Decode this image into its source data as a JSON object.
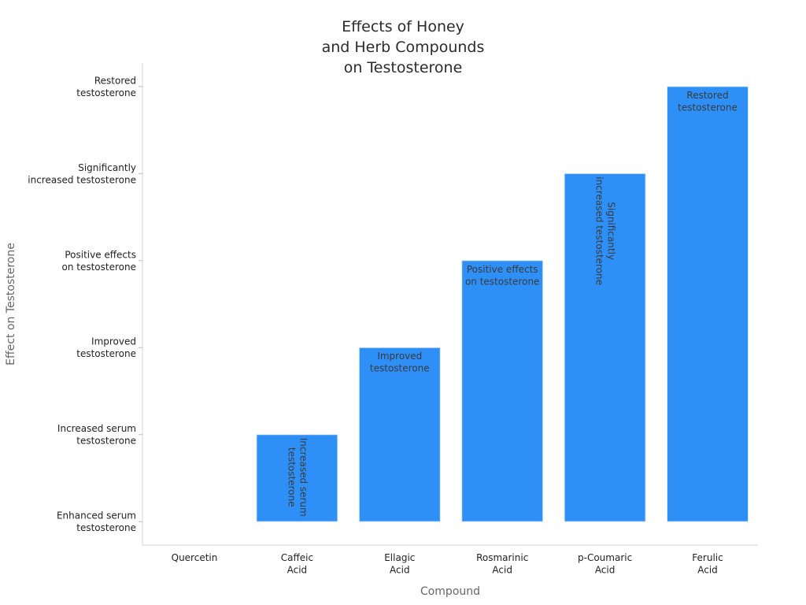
{
  "chart_data": {
    "type": "bar",
    "title_lines": [
      "Effects of Honey",
      "and Herb Compounds",
      "on Testosterone"
    ],
    "xlabel": "Compound",
    "ylabel": "Effect on Testosterone",
    "categories": [
      [
        "Quercetin"
      ],
      [
        "Caffeic",
        "Acid"
      ],
      [
        "Ellagic",
        "Acid"
      ],
      [
        "Rosmarinic",
        "Acid"
      ],
      [
        "p-Coumaric",
        "Acid"
      ],
      [
        "Ferulic",
        "Acid"
      ]
    ],
    "y_categories": [
      [
        "Enhanced serum",
        "testosterone"
      ],
      [
        "Increased serum",
        "testosterone"
      ],
      [
        "Improved",
        "testosterone"
      ],
      [
        "Positive effects",
        "on testosterone"
      ],
      [
        "Significantly",
        "increased testosterone"
      ],
      [
        "Restored",
        "testosterone"
      ]
    ],
    "values": [
      0,
      1,
      2,
      3,
      4,
      5
    ],
    "bar_labels": [
      null,
      {
        "lines": [
          "Increased serum",
          "testosterone"
        ],
        "rotated": true
      },
      {
        "lines": [
          "Improved",
          "testosterone"
        ],
        "rotated": false
      },
      {
        "lines": [
          "Positive effects",
          "on testosterone"
        ],
        "rotated": false
      },
      {
        "lines": [
          "Significantly",
          "increased testosterone"
        ],
        "rotated": true
      },
      {
        "lines": [
          "Restored",
          "testosterone"
        ],
        "rotated": false
      }
    ],
    "ylim": [
      -0.27,
      5.27
    ],
    "grid": false,
    "bar_color": "#2e90f7",
    "bar_edge_color": "#d9e8fb"
  }
}
